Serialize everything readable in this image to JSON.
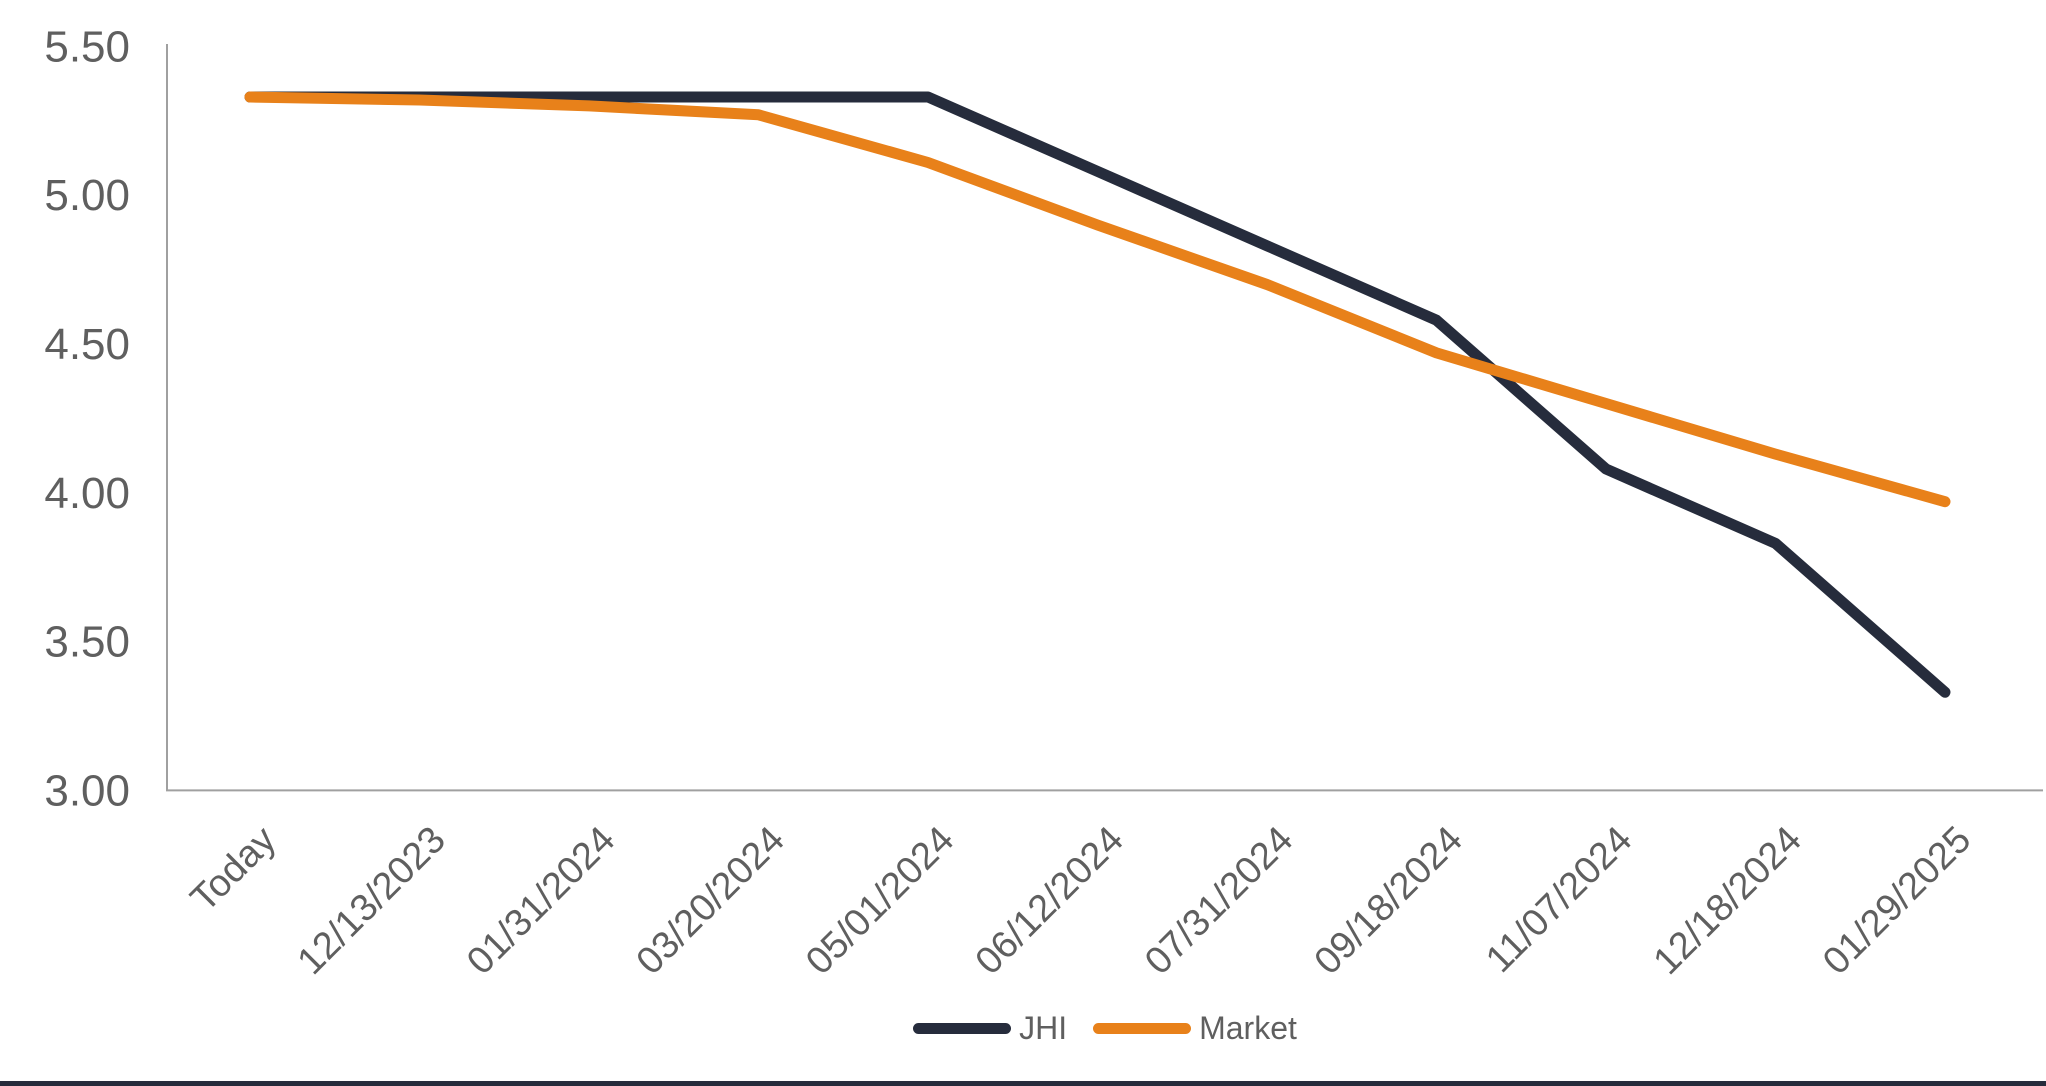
{
  "chart_data": {
    "type": "line",
    "title": "",
    "x": [
      "Today",
      "12/13/2023",
      "01/31/2024",
      "03/20/2024",
      "05/01/2024",
      "06/12/2024",
      "07/31/2024",
      "09/18/2024",
      "11/07/2024",
      "12/18/2024",
      "01/29/2025"
    ],
    "series": [
      {
        "name": "JHI",
        "color": "#262C3C",
        "values": [
          5.33,
          5.33,
          5.33,
          5.33,
          5.33,
          5.08,
          4.83,
          4.58,
          4.08,
          3.83,
          3.33
        ]
      },
      {
        "name": "Market",
        "color": "#E8811A",
        "values": [
          5.33,
          5.32,
          5.3,
          5.27,
          5.11,
          4.9,
          4.7,
          4.47,
          4.3,
          4.13,
          3.97
        ]
      }
    ],
    "ylim": [
      3.0,
      5.5
    ],
    "ytick_step": 0.5,
    "ytick_labels": [
      "3.00",
      "3.50",
      "4.00",
      "4.50",
      "5.00",
      "5.50"
    ],
    "xlabel": "",
    "ylabel": "",
    "grid": false,
    "legend_position": "bottom-center"
  },
  "colors": {
    "background": "#FFFFFF",
    "axis_line": "#A0A0A0",
    "tick_text": "#5F5F5F",
    "footer_bar": "#262C3C"
  }
}
